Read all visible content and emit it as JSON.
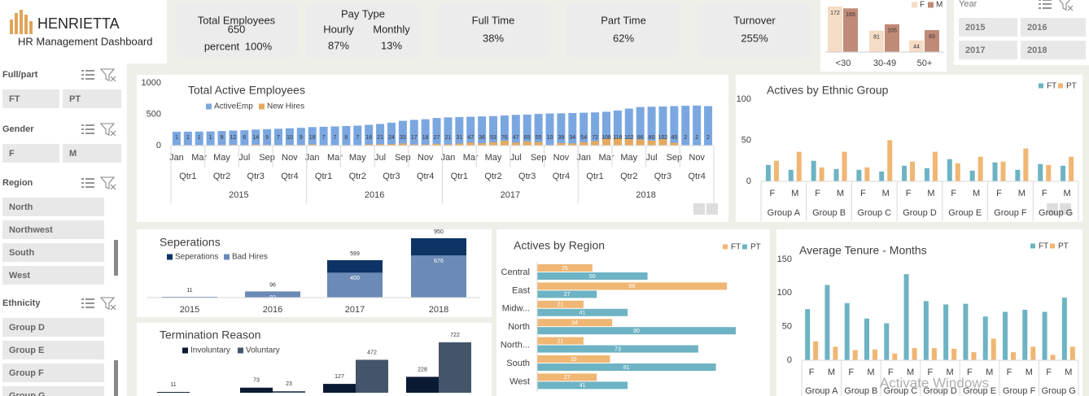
{
  "header": {
    "brand": "HENRIETTA",
    "subtitle": "HR Management Dashboard"
  },
  "kpis": [
    {
      "title": "Total Employees",
      "value": "650",
      "sub_label": "percent",
      "sub_value": "100%"
    },
    {
      "title": "Pay Type",
      "items": [
        {
          "label": "Hourly",
          "value": "87%"
        },
        {
          "label": "Monthly",
          "value": "13%"
        }
      ]
    },
    {
      "title": "Full Time",
      "value": "38%"
    },
    {
      "title": "Part Time",
      "value": "62%"
    },
    {
      "title": "Turnover",
      "value": "255%"
    }
  ],
  "year_slicer": {
    "title": "Year",
    "items": [
      "2015",
      "2016",
      "2017",
      "2018"
    ]
  },
  "slicers": [
    {
      "title": "Full/part",
      "items": [
        "FT",
        "PT"
      ]
    },
    {
      "title": "Gender",
      "items": [
        "F",
        "M"
      ]
    },
    {
      "title": "Region",
      "items": [
        "North",
        "Northwest",
        "South",
        "West"
      ]
    },
    {
      "title": "Ethnicity",
      "items": [
        "Group D",
        "Group E",
        "Group F",
        "Group G"
      ]
    }
  ],
  "watermark": "Activate Windows",
  "chart_data": [
    {
      "type": "bar",
      "categories": [
        "<30",
        "30-49",
        "50+"
      ],
      "series": [
        {
          "name": "F",
          "color": "#f5dcc6",
          "values": [
            172,
            81,
            44
          ]
        },
        {
          "name": "M",
          "color": "#c08a78",
          "values": [
            165,
            105,
            83
          ]
        }
      ]
    },
    {
      "type": "bar",
      "title": "Total Active Employees",
      "categories": [
        "Jan",
        null,
        "Mar",
        null,
        "May",
        null,
        "Jul",
        null,
        "Sep",
        null,
        "Nov",
        null,
        "Jan",
        null,
        "Mar",
        null,
        "May",
        null,
        "Jul",
        null,
        "Sep",
        null,
        "Nov",
        null,
        "Jan",
        null,
        "Mar",
        null,
        "May",
        null,
        "Jul",
        null,
        "Sep",
        null,
        "Nov",
        null,
        "Jan",
        null,
        "Mar",
        null,
        "May",
        null,
        "Jul",
        null,
        "Sep",
        null,
        "Nov",
        null
      ],
      "quarters": [
        "Qtr1",
        "Qtr2",
        "Qtr3",
        "Qtr4",
        "Qtr1",
        "Qtr2",
        "Qtr3",
        "Qtr4",
        "Qtr1",
        "Qtr2",
        "Qtr3",
        "Qtr4",
        "Qtr1",
        "Qtr2",
        "Qtr3",
        "Qtr4"
      ],
      "years": [
        2015,
        2016,
        2017,
        2018
      ],
      "ylim": [
        0,
        1000
      ],
      "yticks": [
        0,
        500,
        1000
      ],
      "series": [
        {
          "name": "ActiveEmp",
          "color": "#7ba7e1",
          "values": [
            220,
            222,
            224,
            226,
            232,
            240,
            245,
            255,
            262,
            268,
            276,
            283,
            295,
            300,
            305,
            312,
            318,
            330,
            345,
            365,
            395,
            410,
            420,
            440,
            450,
            455,
            460,
            465,
            470,
            480,
            490,
            495,
            505,
            512,
            515,
            520,
            525,
            530,
            540,
            560,
            590,
            615,
            620,
            625,
            630,
            635,
            640,
            630
          ]
        },
        {
          "name": "New Hires",
          "color": "#e5a95e",
          "values": [
            1,
            1,
            1,
            1,
            9,
            12,
            6,
            14,
            9,
            7,
            10,
            9,
            18,
            7,
            7,
            8,
            7,
            18,
            21,
            24,
            33,
            17,
            18,
            27,
            21,
            31,
            47,
            36,
            53,
            76,
            47,
            65,
            55,
            10,
            39,
            34,
            54,
            72,
            108,
            118,
            102,
            96,
            80,
            102,
            45,
            2,
            2,
            2
          ]
        }
      ]
    },
    {
      "type": "bar",
      "title": "Actives by Ethnic Group",
      "categories": [
        "F",
        "M",
        "F",
        "M",
        "F",
        "M",
        "F",
        "M",
        "F",
        "M",
        "F",
        "M",
        "F",
        "M"
      ],
      "groups": [
        "Group A",
        "Group B",
        "Group C",
        "Group D",
        "Group E",
        "Group F",
        "Group G"
      ],
      "ylim": [
        0,
        100
      ],
      "yticks": [
        0,
        50,
        100
      ],
      "series": [
        {
          "name": "FT",
          "color": "#6db3c3",
          "values": [
            20,
            14,
            25,
            15,
            14,
            12,
            19,
            16,
            27,
            13,
            23,
            14,
            21,
            19
          ]
        },
        {
          "name": "PT",
          "color": "#f0b673",
          "values": [
            25,
            36,
            17,
            36,
            17,
            50,
            24,
            36,
            22,
            30,
            24,
            40,
            20,
            30
          ]
        }
      ]
    },
    {
      "type": "bar",
      "title": "Seperations",
      "categories": [
        "2015",
        "2016",
        "2017",
        "2018"
      ],
      "series": [
        {
          "name": "Seperations",
          "color": "#0e3466",
          "values": [
            11,
            96,
            599,
            950
          ]
        },
        {
          "name": "Bad Hires",
          "color": "#6b8bb6",
          "values": [
            null,
            92,
            400,
            676
          ]
        }
      ]
    },
    {
      "type": "bar",
      "title": "Termination Reason",
      "series": [
        {
          "name": "Involuntary",
          "color": "#0b1a33",
          "values": [
            11,
            73,
            127,
            228
          ]
        },
        {
          "name": "Voluntary",
          "color": "#44546a",
          "values": [
            null,
            23,
            472,
            722
          ]
        }
      ]
    },
    {
      "type": "barh",
      "title": "Actives by Region",
      "categories": [
        "Central",
        "East",
        "Midw...",
        "North",
        "North...",
        "South",
        "West"
      ],
      "series": [
        {
          "name": "FT",
          "color": "#f0b673",
          "values": [
            25,
            86,
            21,
            34,
            21,
            33,
            27
          ]
        },
        {
          "name": "PT",
          "color": "#6db3c3",
          "values": [
            50,
            27,
            41,
            90,
            73,
            81,
            41
          ]
        }
      ]
    },
    {
      "type": "bar",
      "title": "Average Tenure - Months",
      "categories": [
        "F",
        "M",
        "F",
        "M",
        "F",
        "M",
        "F",
        "M",
        "F",
        "M",
        "F",
        "M",
        "F",
        "M"
      ],
      "groups": [
        "Group A",
        "Group B",
        "Group C",
        "Group D",
        "Group E",
        "Group F",
        "Group G"
      ],
      "ylim": [
        0,
        150
      ],
      "yticks": [
        0,
        50,
        100,
        150
      ],
      "series": [
        {
          "name": "FT",
          "color": "#6db3c3",
          "values": [
            76,
            112,
            85,
            62,
            55,
            128,
            88,
            83,
            84,
            65,
            72,
            75,
            72,
            93
          ]
        },
        {
          "name": "PT",
          "color": "#f0b673",
          "values": [
            28,
            20,
            15,
            16,
            10,
            18,
            18,
            17,
            12,
            32,
            12,
            20,
            8,
            20
          ]
        }
      ]
    }
  ]
}
